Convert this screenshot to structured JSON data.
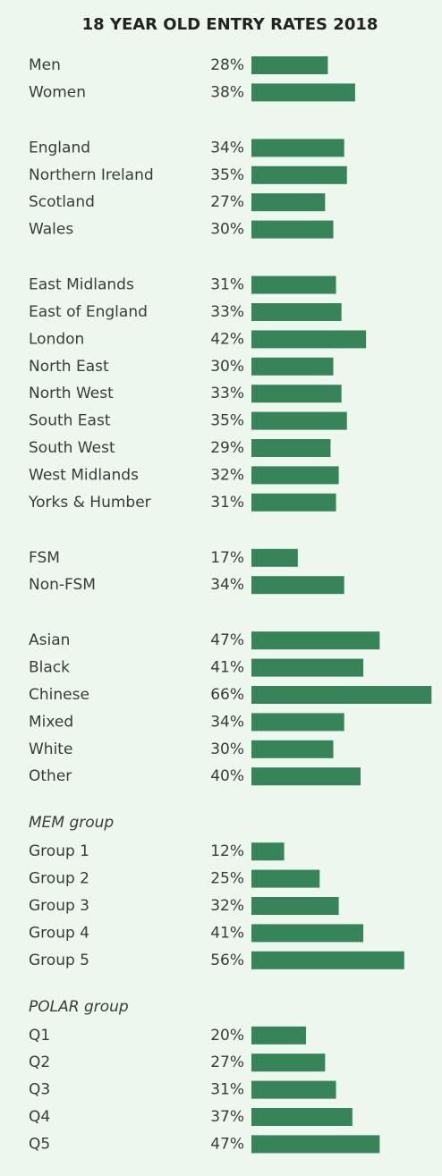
{
  "chart_data": {
    "type": "bar",
    "orientation": "horizontal",
    "title": "18 YEAR OLD ENTRY RATES 2018",
    "color": "#37845a",
    "groups": [
      {
        "categories": [
          "Men",
          "Women"
        ],
        "values": [
          28,
          38
        ],
        "value_labels": [
          "28%",
          "38%"
        ]
      },
      {
        "categories": [
          "England",
          "Northern Ireland",
          "Scotland",
          "Wales"
        ],
        "values": [
          34,
          35,
          27,
          30
        ],
        "value_labels": [
          "34%",
          "35%",
          "27%",
          "30%"
        ]
      },
      {
        "categories": [
          "East Midlands",
          "East of England",
          "London",
          "North East",
          "North West",
          "South East",
          "South West",
          "West Midlands",
          "Yorks & Humber"
        ],
        "values": [
          31,
          33,
          42,
          30,
          33,
          35,
          29,
          32,
          31
        ],
        "value_labels": [
          "31%",
          "33%",
          "42%",
          "30%",
          "33%",
          "35%",
          "29%",
          "32%",
          "31%"
        ]
      },
      {
        "categories": [
          "FSM",
          "Non-FSM"
        ],
        "values": [
          17,
          34
        ],
        "value_labels": [
          "17%",
          "34%"
        ]
      },
      {
        "categories": [
          "Asian",
          "Black",
          "Chinese",
          "Mixed",
          "White",
          "Other"
        ],
        "values": [
          47,
          41,
          66,
          34,
          30,
          40
        ],
        "value_labels": [
          "47%",
          "41%",
          "66%",
          "34%",
          "30%",
          "40%"
        ]
      },
      {
        "name": "MEM group",
        "categories": [
          "Group 1",
          "Group 2",
          "Group 3",
          "Group 4",
          "Group 5"
        ],
        "values": [
          12,
          25,
          32,
          41,
          56
        ],
        "value_labels": [
          "12%",
          "25%",
          "32%",
          "41%",
          "56%"
        ]
      },
      {
        "name": "POLAR group",
        "categories": [
          "Q1",
          "Q2",
          "Q3",
          "Q4",
          "Q5"
        ],
        "values": [
          20,
          27,
          31,
          37,
          47
        ],
        "value_labels": [
          "20%",
          "27%",
          "31%",
          "37%",
          "47%"
        ]
      }
    ]
  }
}
